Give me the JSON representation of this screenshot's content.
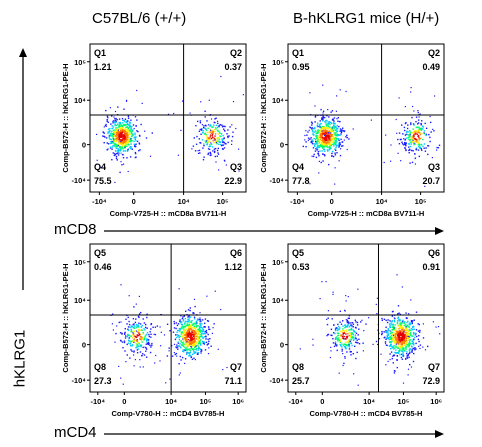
{
  "figure": {
    "column_titles": [
      "C57BL/6 (+/+)",
      "B-hKLRG1 mice (H/+)"
    ],
    "row_x_markers": [
      "mCD8",
      "mCD4"
    ],
    "y_marker": "hKLRG1",
    "colors": {
      "line": "#000000",
      "density": [
        "#1a1aff",
        "#00c8ff",
        "#00ff66",
        "#ffee00",
        "#ff7700",
        "#e60000"
      ]
    }
  },
  "chart_data": [
    {
      "type": "scatter",
      "title": "C57BL/6 (+/+)",
      "xlabel": "Comp-V725-H :: mCD8a BV711-H",
      "ylabel": "Comp-B572-H :: hKLRG1-PE-H",
      "xticks": [
        "-10⁴",
        "0",
        "10⁴",
        "10⁵"
      ],
      "yticks": [
        "-10⁴",
        "0",
        "10⁴",
        "10⁵"
      ],
      "quadrants": [
        {
          "name": "Q1",
          "value": "1.21"
        },
        {
          "name": "Q2",
          "value": "0.37"
        },
        {
          "name": "Q3",
          "value": "22.9"
        },
        {
          "name": "Q4",
          "value": "75.5"
        }
      ],
      "populations": [
        {
          "x": 0.2,
          "y": 0.38,
          "sx": 0.05,
          "sy": 0.06,
          "n": 560,
          "peak": 1.0
        },
        {
          "x": 0.78,
          "y": 0.38,
          "sx": 0.05,
          "sy": 0.06,
          "n": 200,
          "peak": 0.75
        }
      ],
      "gate": {
        "x": 0.6,
        "y": 0.52
      },
      "grid": false
    },
    {
      "type": "scatter",
      "title": "B-hKLRG1 mice (H/+)",
      "xlabel": "Comp-V725-H :: mCD8a BV711-H",
      "ylabel": "Comp-B572-H :: hKLRG1-PE-H",
      "xticks": [
        "-10⁴",
        "0",
        "10⁴",
        "10⁵"
      ],
      "yticks": [
        "-10⁴",
        "0",
        "10⁴",
        "10⁵"
      ],
      "quadrants": [
        {
          "name": "Q1",
          "value": "0.95"
        },
        {
          "name": "Q2",
          "value": "0.49"
        },
        {
          "name": "Q3",
          "value": "20.7"
        },
        {
          "name": "Q4",
          "value": "77.8"
        }
      ],
      "populations": [
        {
          "x": 0.24,
          "y": 0.38,
          "sx": 0.05,
          "sy": 0.06,
          "n": 560,
          "peak": 1.0
        },
        {
          "x": 0.82,
          "y": 0.38,
          "sx": 0.05,
          "sy": 0.06,
          "n": 190,
          "peak": 0.75
        }
      ],
      "gate": {
        "x": 0.6,
        "y": 0.52
      },
      "grid": false
    },
    {
      "type": "scatter",
      "title": "",
      "xlabel": "Comp-V780-H :: mCD4 BV785-H",
      "ylabel": "Comp-B572-H :: hKLRG1-PE-H",
      "xticks": [
        "-10⁴",
        "0",
        "10⁴",
        "10⁵",
        "10⁶"
      ],
      "yticks": [
        "-10⁴",
        "0",
        "10⁴",
        "10⁵"
      ],
      "quadrants": [
        {
          "name": "Q5",
          "value": "0.46"
        },
        {
          "name": "Q6",
          "value": "1.12"
        },
        {
          "name": "Q7",
          "value": "71.1"
        },
        {
          "name": "Q8",
          "value": "27.3"
        }
      ],
      "populations": [
        {
          "x": 0.3,
          "y": 0.38,
          "sx": 0.05,
          "sy": 0.06,
          "n": 220,
          "peak": 0.75
        },
        {
          "x": 0.64,
          "y": 0.38,
          "sx": 0.05,
          "sy": 0.07,
          "n": 560,
          "peak": 1.0
        }
      ],
      "gate": {
        "x": 0.52,
        "y": 0.52
      },
      "grid": false
    },
    {
      "type": "scatter",
      "title": "",
      "xlabel": "Comp-V780-H :: mCD4 BV785-H",
      "ylabel": "Comp-B572-H :: hKLRG1-PE-H",
      "xticks": [
        "-10⁴",
        "0",
        "10⁴",
        "10⁵",
        "10⁶"
      ],
      "yticks": [
        "-10⁴",
        "0",
        "10⁴",
        "10⁵"
      ],
      "quadrants": [
        {
          "name": "Q5",
          "value": "0.53"
        },
        {
          "name": "Q6",
          "value": "0.91"
        },
        {
          "name": "Q7",
          "value": "72.9"
        },
        {
          "name": "Q8",
          "value": "25.7"
        }
      ],
      "populations": [
        {
          "x": 0.36,
          "y": 0.38,
          "sx": 0.05,
          "sy": 0.06,
          "n": 220,
          "peak": 0.75
        },
        {
          "x": 0.72,
          "y": 0.38,
          "sx": 0.05,
          "sy": 0.07,
          "n": 560,
          "peak": 1.0
        }
      ],
      "gate": {
        "x": 0.58,
        "y": 0.52
      },
      "grid": false
    }
  ]
}
